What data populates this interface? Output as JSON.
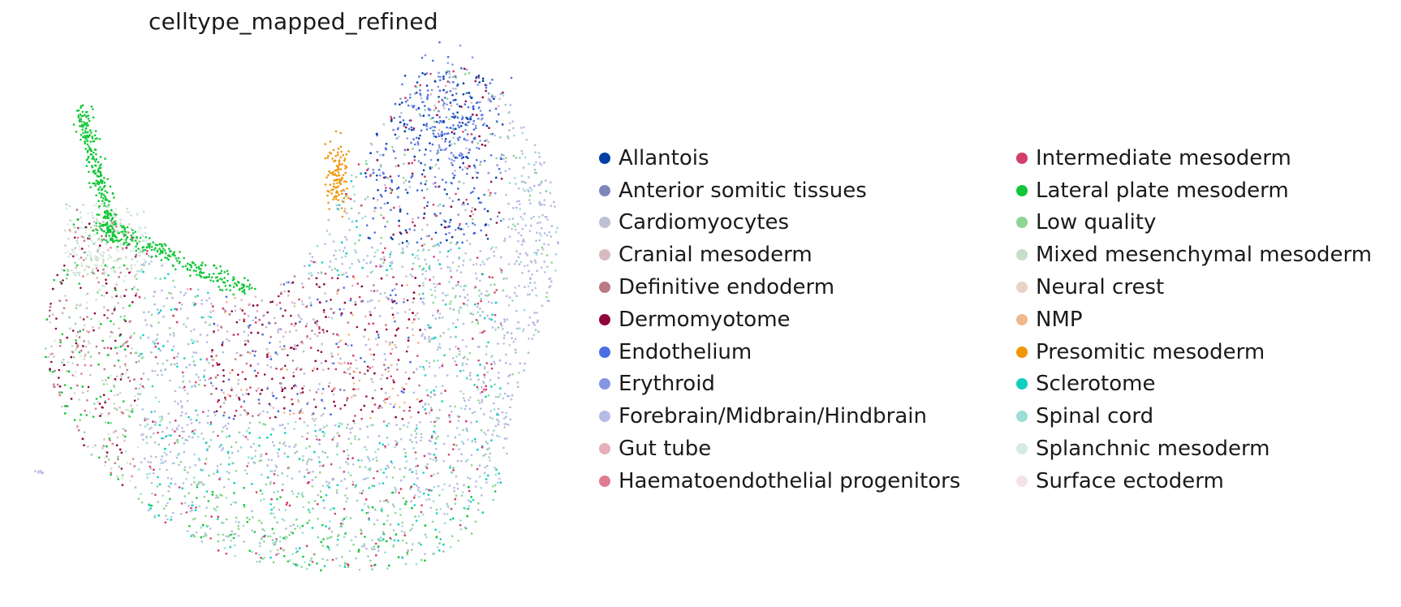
{
  "chart_data": {
    "type": "scatter",
    "title": "celltype_mapped_refined",
    "xlabel": "",
    "ylabel": "",
    "grid": false,
    "axes_visible": false,
    "legend_position": "right",
    "legend_columns": 2,
    "series": [
      {
        "name": "Allantois",
        "color": "#023fa5"
      },
      {
        "name": "Anterior somitic tissues",
        "color": "#7d87b9"
      },
      {
        "name": "Cardiomyocytes",
        "color": "#bec1d4"
      },
      {
        "name": "Cranial mesoderm",
        "color": "#d6bcc0"
      },
      {
        "name": "Definitive endoderm",
        "color": "#bb7784"
      },
      {
        "name": "Dermomyotome",
        "color": "#8e063b"
      },
      {
        "name": "Endothelium",
        "color": "#4a6fe3"
      },
      {
        "name": "Erythroid",
        "color": "#8595e1"
      },
      {
        "name": "Forebrain/Midbrain/Hindbrain",
        "color": "#b5bbe3"
      },
      {
        "name": "Gut tube",
        "color": "#e6afb9"
      },
      {
        "name": "Haematoendothelial progenitors",
        "color": "#e07b91"
      },
      {
        "name": "Intermediate mesoderm",
        "color": "#d33f6a"
      },
      {
        "name": "Lateral plate mesoderm",
        "color": "#11c638"
      },
      {
        "name": "Low quality",
        "color": "#8dd593"
      },
      {
        "name": "Mixed mesenchymal mesoderm",
        "color": "#c6dec7"
      },
      {
        "name": "Neural crest",
        "color": "#ead3c6"
      },
      {
        "name": "NMP",
        "color": "#f0b98d"
      },
      {
        "name": "Presomitic mesoderm",
        "color": "#ef9708"
      },
      {
        "name": "Sclerotome",
        "color": "#0fcfc0"
      },
      {
        "name": "Spinal cord",
        "color": "#9cded6"
      },
      {
        "name": "Splanchnic mesoderm",
        "color": "#d5eae7"
      },
      {
        "name": "Surface ectoderm",
        "color": "#f3e1eb"
      }
    ]
  }
}
